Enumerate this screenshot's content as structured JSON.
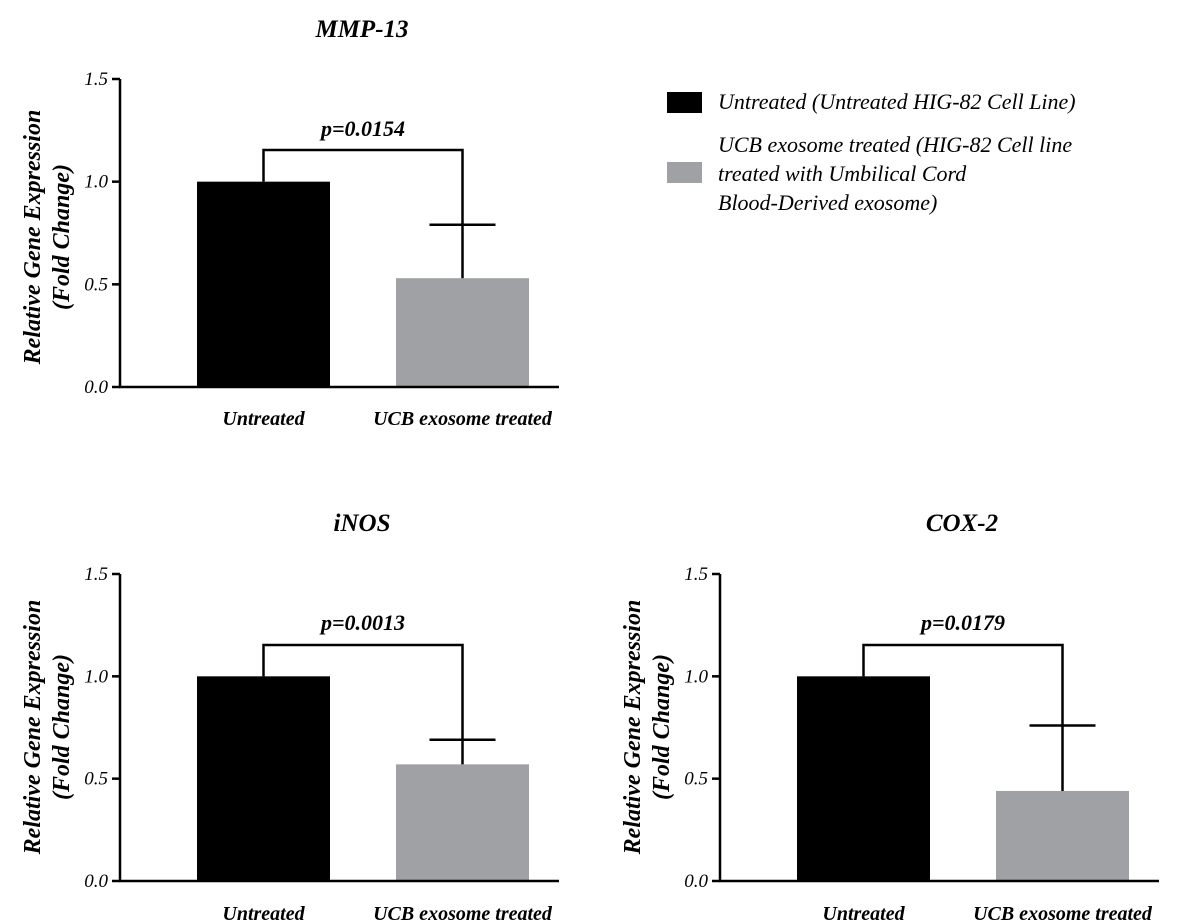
{
  "legend": {
    "entries": [
      {
        "lines": [
          "Untreated (Untreated HIG-82 Cell Line)"
        ],
        "color": "#000000"
      },
      {
        "lines": [
          "UCB exosome treated (HIG-82 Cell line",
          "treated with Umbilical Cord",
          "Blood-Derived exosome)"
        ],
        "color": "#a0a1a5"
      }
    ]
  },
  "chart_data": [
    {
      "type": "bar",
      "title": "MMP-13",
      "ylabel": [
        "Relative Gene Expression",
        "(Fold Change)"
      ],
      "categories": [
        "Untreated",
        "UCB exosome treated"
      ],
      "values": [
        1.0,
        0.53
      ],
      "error_upper": [
        0,
        0.26
      ],
      "colors": [
        "#000000",
        "#a0a1a5"
      ],
      "ylim": [
        0,
        1.5
      ],
      "yticks": [
        "0.0",
        "0.5",
        "1.0",
        "1.5"
      ],
      "significance": "p=0.0154"
    },
    {
      "type": "bar",
      "title": "iNOS",
      "ylabel": [
        "Relative Gene Expression",
        "(Fold Change)"
      ],
      "categories": [
        "Untreated",
        "UCB exosome treated"
      ],
      "values": [
        1.0,
        0.57
      ],
      "error_upper": [
        0,
        0.12
      ],
      "colors": [
        "#000000",
        "#a0a1a5"
      ],
      "ylim": [
        0,
        1.5
      ],
      "yticks": [
        "0.0",
        "0.5",
        "1.0",
        "1.5"
      ],
      "significance": "p=0.0013"
    },
    {
      "type": "bar",
      "title": "COX-2",
      "ylabel": [
        "Relative Gene Expression",
        "(Fold Change)"
      ],
      "categories": [
        "Untreated",
        "UCB exosome treated"
      ],
      "values": [
        1.0,
        0.44
      ],
      "error_upper": [
        0,
        0.32
      ],
      "colors": [
        "#000000",
        "#a0a1a5"
      ],
      "ylim": [
        0,
        1.5
      ],
      "yticks": [
        "0.0",
        "0.5",
        "1.0",
        "1.5"
      ],
      "significance": "p=0.0179"
    }
  ]
}
